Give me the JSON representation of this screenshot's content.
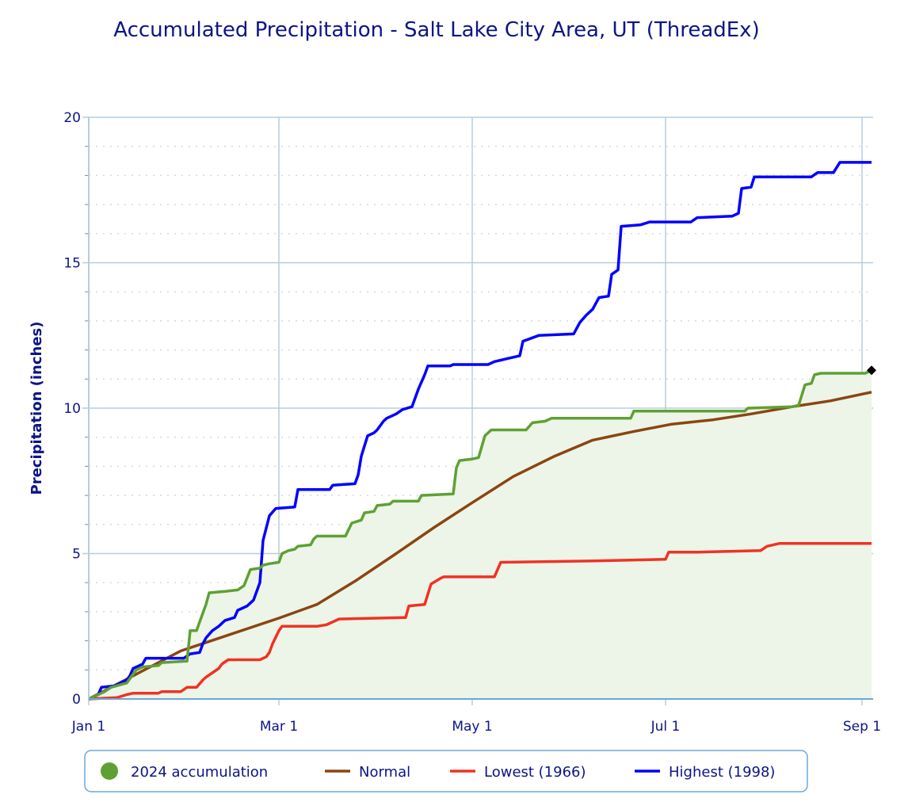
{
  "chart_data": {
    "type": "line",
    "title": "Accumulated Precipitation - Salt Lake City Area, UT (ThreadEx)",
    "xlabel": "",
    "ylabel": "Precipitation (inches)",
    "xlim": [
      "2024-01-01",
      "2024-09-04"
    ],
    "ylim": [
      0,
      20
    ],
    "x_ticks": [
      {
        "date": "2024-01-01",
        "label": "Jan 1"
      },
      {
        "date": "2024-03-01",
        "label": "Mar 1"
      },
      {
        "date": "2024-05-01",
        "label": "May 1"
      },
      {
        "date": "2024-07-01",
        "label": "Jul 1"
      },
      {
        "date": "2024-09-01",
        "label": "Sep 1"
      }
    ],
    "y_ticks": [
      0,
      5,
      10,
      15,
      20
    ],
    "grid": true,
    "minor_grid": "dotted, every 1 inch",
    "legend_position": "bottom",
    "series": [
      {
        "name": "2024 accumulation",
        "color": "#5ea132",
        "fill": "#edf5e8",
        "legend_symbol": "circle",
        "end_marker": "diamond",
        "points": [
          [
            "2024-01-01",
            0
          ],
          [
            "2024-01-06",
            0.25
          ],
          [
            "2024-01-08",
            0.4
          ],
          [
            "2024-01-13",
            0.55
          ],
          [
            "2024-01-16",
            1.0
          ],
          [
            "2024-01-18",
            1.1
          ],
          [
            "2024-01-23",
            1.15
          ],
          [
            "2024-01-24",
            1.25
          ],
          [
            "2024-02-01",
            1.3
          ],
          [
            "2024-02-02",
            2.35
          ],
          [
            "2024-02-04",
            2.35
          ],
          [
            "2024-02-05",
            2.65
          ],
          [
            "2024-02-07",
            3.25
          ],
          [
            "2024-02-08",
            3.65
          ],
          [
            "2024-02-13",
            3.7
          ],
          [
            "2024-02-17",
            3.75
          ],
          [
            "2024-02-19",
            3.9
          ],
          [
            "2024-02-21",
            4.45
          ],
          [
            "2024-02-24",
            4.5
          ],
          [
            "2024-02-25",
            4.6
          ],
          [
            "2024-02-27",
            4.65
          ],
          [
            "2024-03-01",
            4.7
          ],
          [
            "2024-03-02",
            5.0
          ],
          [
            "2024-03-04",
            5.1
          ],
          [
            "2024-03-06",
            5.15
          ],
          [
            "2024-03-07",
            5.25
          ],
          [
            "2024-03-11",
            5.3
          ],
          [
            "2024-03-12",
            5.5
          ],
          [
            "2024-03-13",
            5.6
          ],
          [
            "2024-03-22",
            5.6
          ],
          [
            "2024-03-24",
            6.05
          ],
          [
            "2024-03-27",
            6.15
          ],
          [
            "2024-03-28",
            6.4
          ],
          [
            "2024-03-31",
            6.45
          ],
          [
            "2024-04-01",
            6.65
          ],
          [
            "2024-04-05",
            6.7
          ],
          [
            "2024-04-06",
            6.8
          ],
          [
            "2024-04-14",
            6.8
          ],
          [
            "2024-04-15",
            7.0
          ],
          [
            "2024-04-25",
            7.05
          ],
          [
            "2024-04-26",
            7.95
          ],
          [
            "2024-04-27",
            8.2
          ],
          [
            "2024-05-01",
            8.25
          ],
          [
            "2024-05-03",
            8.3
          ],
          [
            "2024-05-05",
            9.05
          ],
          [
            "2024-05-07",
            9.25
          ],
          [
            "2024-05-18",
            9.25
          ],
          [
            "2024-05-20",
            9.5
          ],
          [
            "2024-05-24",
            9.55
          ],
          [
            "2024-05-26",
            9.65
          ],
          [
            "2024-06-20",
            9.65
          ],
          [
            "2024-06-21",
            9.9
          ],
          [
            "2024-07-26",
            9.9
          ],
          [
            "2024-07-27",
            10.0
          ],
          [
            "2024-08-10",
            10.05
          ],
          [
            "2024-08-12",
            10.1
          ],
          [
            "2024-08-14",
            10.8
          ],
          [
            "2024-08-16",
            10.85
          ],
          [
            "2024-08-17",
            11.15
          ],
          [
            "2024-08-19",
            11.2
          ],
          [
            "2024-09-02",
            11.2
          ],
          [
            "2024-09-04",
            11.3
          ]
        ]
      },
      {
        "name": "Normal",
        "color": "#8b4513",
        "points": [
          [
            "2024-01-01",
            0
          ],
          [
            "2024-01-30",
            1.65
          ],
          [
            "2024-03-01",
            2.78
          ],
          [
            "2024-03-13",
            3.25
          ],
          [
            "2024-03-25",
            4.05
          ],
          [
            "2024-04-07",
            5.0
          ],
          [
            "2024-04-19",
            5.9
          ],
          [
            "2024-05-01",
            6.75
          ],
          [
            "2024-05-14",
            7.65
          ],
          [
            "2024-05-27",
            8.35
          ],
          [
            "2024-06-08",
            8.9
          ],
          [
            "2024-06-21",
            9.2
          ],
          [
            "2024-07-03",
            9.45
          ],
          [
            "2024-07-16",
            9.6
          ],
          [
            "2024-07-28",
            9.8
          ],
          [
            "2024-08-10",
            10.05
          ],
          [
            "2024-08-22",
            10.25
          ],
          [
            "2024-09-04",
            10.55
          ]
        ]
      },
      {
        "name": "Lowest (1966)",
        "color": "#f03224",
        "points": [
          [
            "2024-01-01",
            0
          ],
          [
            "2024-01-10",
            0.05
          ],
          [
            "2024-01-13",
            0.15
          ],
          [
            "2024-01-15",
            0.2
          ],
          [
            "2024-01-23",
            0.2
          ],
          [
            "2024-01-24",
            0.25
          ],
          [
            "2024-01-30",
            0.25
          ],
          [
            "2024-02-01",
            0.4
          ],
          [
            "2024-02-04",
            0.4
          ],
          [
            "2024-02-06",
            0.65
          ],
          [
            "2024-02-07",
            0.75
          ],
          [
            "2024-02-09",
            0.9
          ],
          [
            "2024-02-11",
            1.05
          ],
          [
            "2024-02-12",
            1.2
          ],
          [
            "2024-02-14",
            1.35
          ],
          [
            "2024-02-24",
            1.35
          ],
          [
            "2024-02-26",
            1.45
          ],
          [
            "2024-02-27",
            1.6
          ],
          [
            "2024-02-28",
            1.9
          ],
          [
            "2024-03-01",
            2.35
          ],
          [
            "2024-03-02",
            2.5
          ],
          [
            "2024-03-13",
            2.5
          ],
          [
            "2024-03-16",
            2.55
          ],
          [
            "2024-03-20",
            2.75
          ],
          [
            "2024-04-10",
            2.8
          ],
          [
            "2024-04-11",
            3.2
          ],
          [
            "2024-04-16",
            3.25
          ],
          [
            "2024-04-18",
            3.95
          ],
          [
            "2024-04-21",
            4.15
          ],
          [
            "2024-04-22",
            4.2
          ],
          [
            "2024-05-08",
            4.2
          ],
          [
            "2024-05-10",
            4.7
          ],
          [
            "2024-06-09",
            4.75
          ],
          [
            "2024-07-01",
            4.8
          ],
          [
            "2024-07-02",
            5.05
          ],
          [
            "2024-07-11",
            5.05
          ],
          [
            "2024-07-31",
            5.1
          ],
          [
            "2024-08-02",
            5.25
          ],
          [
            "2024-08-06",
            5.35
          ],
          [
            "2024-09-04",
            5.35
          ]
        ]
      },
      {
        "name": "Highest (1998)",
        "color": "#0000ff",
        "points": [
          [
            "2024-01-01",
            0
          ],
          [
            "2024-01-04",
            0.15
          ],
          [
            "2024-01-05",
            0.4
          ],
          [
            "2024-01-09",
            0.45
          ],
          [
            "2024-01-11",
            0.55
          ],
          [
            "2024-01-13",
            0.65
          ],
          [
            "2024-01-14",
            0.8
          ],
          [
            "2024-01-15",
            1.05
          ],
          [
            "2024-01-17",
            1.15
          ],
          [
            "2024-01-18",
            1.2
          ],
          [
            "2024-01-19",
            1.4
          ],
          [
            "2024-01-31",
            1.4
          ],
          [
            "2024-02-02",
            1.55
          ],
          [
            "2024-02-05",
            1.6
          ],
          [
            "2024-02-06",
            1.9
          ],
          [
            "2024-02-07",
            2.1
          ],
          [
            "2024-02-09",
            2.35
          ],
          [
            "2024-02-11",
            2.5
          ],
          [
            "2024-02-13",
            2.7
          ],
          [
            "2024-02-16",
            2.8
          ],
          [
            "2024-02-17",
            3.05
          ],
          [
            "2024-02-20",
            3.2
          ],
          [
            "2024-02-22",
            3.4
          ],
          [
            "2024-02-24",
            4.0
          ],
          [
            "2024-02-25",
            5.45
          ],
          [
            "2024-02-27",
            6.3
          ],
          [
            "2024-02-29",
            6.55
          ],
          [
            "2024-03-06",
            6.6
          ],
          [
            "2024-03-07",
            7.2
          ],
          [
            "2024-03-17",
            7.2
          ],
          [
            "2024-03-18",
            7.35
          ],
          [
            "2024-03-25",
            7.4
          ],
          [
            "2024-03-26",
            7.7
          ],
          [
            "2024-03-27",
            8.35
          ],
          [
            "2024-03-29",
            9.05
          ],
          [
            "2024-03-31",
            9.15
          ],
          [
            "2024-04-01",
            9.25
          ],
          [
            "2024-04-03",
            9.55
          ],
          [
            "2024-04-04",
            9.65
          ],
          [
            "2024-04-07",
            9.8
          ],
          [
            "2024-04-09",
            9.95
          ],
          [
            "2024-04-12",
            10.05
          ],
          [
            "2024-04-14",
            10.65
          ],
          [
            "2024-04-16",
            11.15
          ],
          [
            "2024-04-17",
            11.45
          ],
          [
            "2024-04-24",
            11.45
          ],
          [
            "2024-04-25",
            11.5
          ],
          [
            "2024-05-06",
            11.5
          ],
          [
            "2024-05-08",
            11.6
          ],
          [
            "2024-05-12",
            11.7
          ],
          [
            "2024-05-16",
            11.8
          ],
          [
            "2024-05-17",
            12.3
          ],
          [
            "2024-05-22",
            12.5
          ],
          [
            "2024-06-02",
            12.55
          ],
          [
            "2024-06-04",
            12.95
          ],
          [
            "2024-06-06",
            13.2
          ],
          [
            "2024-06-08",
            13.4
          ],
          [
            "2024-06-10",
            13.8
          ],
          [
            "2024-06-13",
            13.85
          ],
          [
            "2024-06-14",
            14.6
          ],
          [
            "2024-06-16",
            14.75
          ],
          [
            "2024-06-17",
            16.25
          ],
          [
            "2024-06-23",
            16.3
          ],
          [
            "2024-06-26",
            16.4
          ],
          [
            "2024-07-09",
            16.4
          ],
          [
            "2024-07-11",
            16.55
          ],
          [
            "2024-07-22",
            16.6
          ],
          [
            "2024-07-24",
            16.7
          ],
          [
            "2024-07-25",
            17.55
          ],
          [
            "2024-07-28",
            17.6
          ],
          [
            "2024-07-29",
            17.95
          ],
          [
            "2024-08-16",
            17.95
          ],
          [
            "2024-08-18",
            18.1
          ],
          [
            "2024-08-23",
            18.1
          ],
          [
            "2024-08-25",
            18.45
          ],
          [
            "2024-09-04",
            18.45
          ]
        ]
      }
    ]
  }
}
